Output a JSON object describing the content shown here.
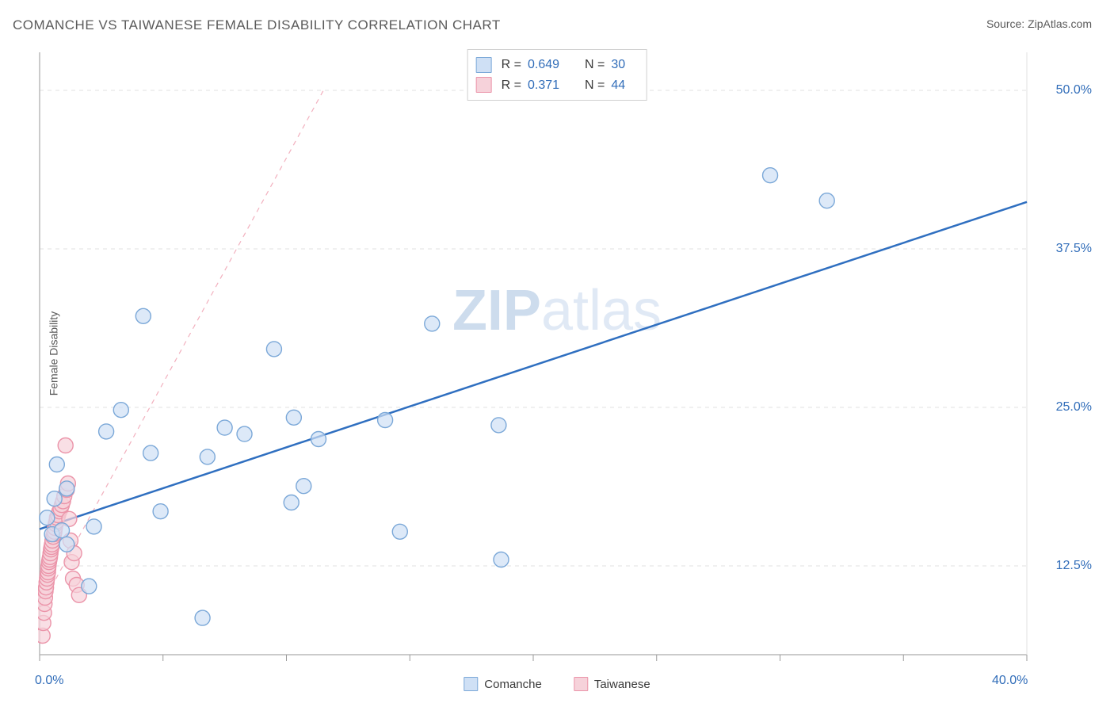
{
  "title": "COMANCHE VS TAIWANESE FEMALE DISABILITY CORRELATION CHART",
  "source_label": "Source: ",
  "source_name": "ZipAtlas.com",
  "y_axis_label": "Female Disability",
  "watermark_a": "ZIP",
  "watermark_b": "atlas",
  "chart": {
    "type": "scatter",
    "xlim": [
      0,
      40
    ],
    "ylim": [
      5.5,
      53
    ],
    "x_ticks": [
      0,
      5,
      10,
      15,
      20,
      25,
      30,
      35,
      40
    ],
    "x_tick_labels": {
      "0": "0.0%",
      "40": "40.0%"
    },
    "y_ticks": [
      12.5,
      25.0,
      37.5,
      50.0
    ],
    "y_tick_labels": [
      "12.5%",
      "25.0%",
      "37.5%",
      "50.0%"
    ],
    "grid_color": "#e0e0e0",
    "axis_color": "#bababa",
    "tick_color": "#9a9a9a",
    "background_color": "#ffffff",
    "tick_label_color": "#316db9",
    "marker_radius": 9.5,
    "marker_stroke_width": 1.4,
    "series": [
      {
        "name": "Comanche",
        "fill": "#cfe0f5",
        "stroke": "#7ba8d8",
        "points": [
          [
            0.3,
            16.3
          ],
          [
            0.5,
            15.0
          ],
          [
            0.6,
            17.8
          ],
          [
            0.7,
            20.5
          ],
          [
            0.9,
            15.3
          ],
          [
            1.1,
            14.2
          ],
          [
            1.1,
            18.6
          ],
          [
            2.0,
            10.9
          ],
          [
            2.2,
            15.6
          ],
          [
            2.7,
            23.1
          ],
          [
            3.3,
            24.8
          ],
          [
            4.2,
            32.2
          ],
          [
            4.5,
            21.4
          ],
          [
            4.9,
            16.8
          ],
          [
            6.6,
            8.4
          ],
          [
            6.8,
            21.1
          ],
          [
            7.5,
            23.4
          ],
          [
            8.3,
            22.9
          ],
          [
            9.5,
            29.6
          ],
          [
            10.2,
            17.5
          ],
          [
            10.3,
            24.2
          ],
          [
            10.7,
            18.8
          ],
          [
            11.3,
            22.5
          ],
          [
            14.0,
            24.0
          ],
          [
            14.6,
            15.2
          ],
          [
            15.9,
            31.6
          ],
          [
            18.6,
            23.6
          ],
          [
            18.7,
            13.0
          ],
          [
            29.6,
            43.3
          ],
          [
            31.9,
            41.3
          ]
        ],
        "trend": {
          "x1": 0,
          "y1": 15.4,
          "x2": 40,
          "y2": 41.2,
          "color": "#2f6fc0",
          "width": 2.5,
          "dash": "none"
        }
      },
      {
        "name": "Taiwanese",
        "fill": "#f6d2da",
        "stroke": "#eb94a9",
        "points": [
          [
            0.12,
            7.0
          ],
          [
            0.15,
            8.0
          ],
          [
            0.18,
            8.8
          ],
          [
            0.2,
            9.5
          ],
          [
            0.22,
            10.0
          ],
          [
            0.24,
            10.5
          ],
          [
            0.26,
            10.8
          ],
          [
            0.28,
            11.2
          ],
          [
            0.3,
            11.5
          ],
          [
            0.32,
            11.8
          ],
          [
            0.34,
            12.0
          ],
          [
            0.35,
            12.3
          ],
          [
            0.36,
            12.5
          ],
          [
            0.38,
            12.8
          ],
          [
            0.4,
            13.0
          ],
          [
            0.42,
            13.2
          ],
          [
            0.44,
            13.5
          ],
          [
            0.46,
            13.8
          ],
          [
            0.48,
            14.0
          ],
          [
            0.5,
            14.2
          ],
          [
            0.52,
            14.5
          ],
          [
            0.55,
            14.8
          ],
          [
            0.58,
            15.0
          ],
          [
            0.6,
            15.2
          ],
          [
            0.62,
            15.5
          ],
          [
            0.65,
            15.8
          ],
          [
            0.68,
            16.0
          ],
          [
            0.7,
            16.3
          ],
          [
            0.75,
            16.5
          ],
          [
            0.8,
            16.8
          ],
          [
            0.85,
            17.0
          ],
          [
            0.9,
            17.3
          ],
          [
            0.95,
            17.6
          ],
          [
            1.0,
            18.0
          ],
          [
            1.05,
            22.0
          ],
          [
            1.1,
            18.5
          ],
          [
            1.15,
            19.0
          ],
          [
            1.2,
            16.2
          ],
          [
            1.25,
            14.5
          ],
          [
            1.3,
            12.8
          ],
          [
            1.35,
            11.5
          ],
          [
            1.4,
            13.5
          ],
          [
            1.5,
            11.0
          ],
          [
            1.6,
            10.2
          ]
        ],
        "trend": {
          "x1": 0.1,
          "y1": 9.5,
          "x2": 11.5,
          "y2": 50.0,
          "color": "#f2b0be",
          "width": 1.2,
          "dash": "6,6"
        }
      }
    ],
    "legend": {
      "items": [
        {
          "label": "Comanche",
          "fill": "#cfe0f5",
          "stroke": "#7ba8d8"
        },
        {
          "label": "Taiwanese",
          "fill": "#f6d2da",
          "stroke": "#eb94a9"
        }
      ]
    },
    "stats_legend": [
      {
        "fill": "#cfe0f5",
        "stroke": "#7ba8d8",
        "r_label": "R =",
        "r": "0.649",
        "n_label": "N =",
        "n": "30"
      },
      {
        "fill": "#f6d2da",
        "stroke": "#eb94a9",
        "r_label": "R =",
        "r": "0.371",
        "n_label": "N =",
        "n": "44"
      }
    ]
  }
}
